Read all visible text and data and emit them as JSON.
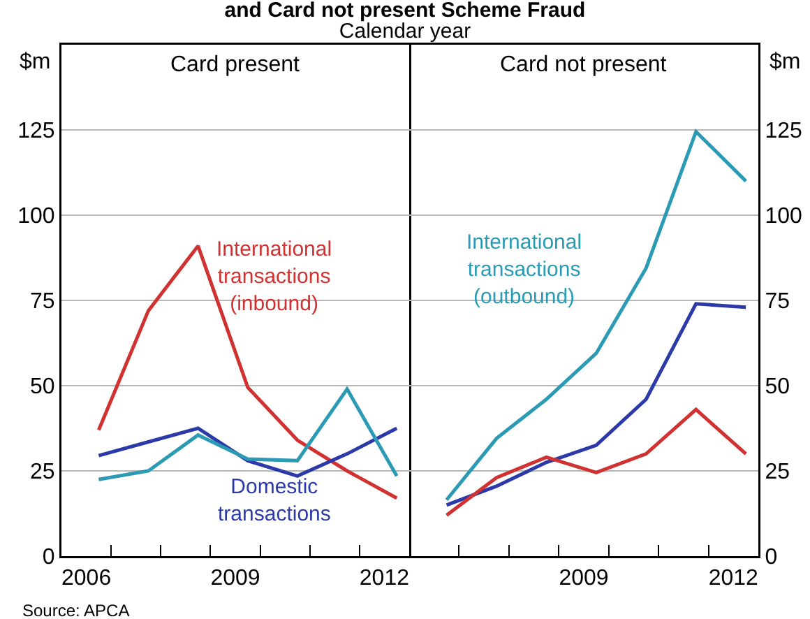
{
  "chart_data": [
    {
      "type": "line",
      "title": "Card present",
      "ylabel": "$m",
      "annotations": [
        "and Card not present Scheme Fraud",
        "Calendar year",
        "Source: APCA"
      ],
      "x": [
        2006.75,
        2007.75,
        2008.75,
        2009.75,
        2010.75,
        2011.75,
        2012.75
      ],
      "xlim": [
        2006,
        2013
      ],
      "xticks": [
        {
          "value": 2006.5,
          "label": "2006"
        },
        {
          "value": 2007,
          "label": null
        },
        {
          "value": 2008,
          "label": null
        },
        {
          "value": 2009,
          "label": null
        },
        {
          "value": 2009.5,
          "label": "2009"
        },
        {
          "value": 2010,
          "label": null
        },
        {
          "value": 2011,
          "label": null
        },
        {
          "value": 2012,
          "label": null
        },
        {
          "value": 2012.5,
          "label": "2012"
        }
      ],
      "ylim": [
        0,
        150
      ],
      "yticks": [
        0,
        25,
        50,
        75,
        100,
        125
      ],
      "grid": "y",
      "legend": false,
      "series": [
        {
          "name": "International\ntransactions\n(inbound)",
          "color": "#d03232",
          "values": [
            37,
            72,
            91,
            49.5,
            34,
            25,
            17
          ]
        },
        {
          "name": "Domestic\ntransactions",
          "color": "#2b3aa8",
          "values": [
            29.5,
            33.5,
            37.5,
            28,
            23.5,
            30,
            37.5
          ]
        },
        {
          "color": "#2a9ab5",
          "values": [
            22.5,
            25,
            35.5,
            28.5,
            28,
            49,
            23.5
          ]
        }
      ]
    },
    {
      "type": "line",
      "title": "Card not present",
      "y2label": "$m",
      "x": [
        2006.75,
        2007.75,
        2008.75,
        2009.75,
        2010.75,
        2011.75,
        2012.75
      ],
      "xlim": [
        2006,
        2013
      ],
      "xticks": [
        {
          "value": 2007,
          "label": null
        },
        {
          "value": 2008,
          "label": null
        },
        {
          "value": 2009,
          "label": null
        },
        {
          "value": 2009.5,
          "label": "2009"
        },
        {
          "value": 2010,
          "label": null
        },
        {
          "value": 2011,
          "label": null
        },
        {
          "value": 2012,
          "label": null
        },
        {
          "value": 2012.5,
          "label": "2012"
        }
      ],
      "y2lim": [
        0,
        150
      ],
      "y2ticks": [
        0,
        25,
        50,
        75,
        100,
        125
      ],
      "grid": "y",
      "legend": false,
      "series": [
        {
          "name": "International\ntransactions\n(outbound)",
          "color": "#2a9ab5",
          "axis": "y2",
          "values": [
            16.5,
            34.5,
            46,
            59.5,
            84.5,
            124.5,
            110
          ]
        },
        {
          "color": "#2b3aa8",
          "axis": "y2",
          "values": [
            15,
            20.5,
            27.5,
            32.5,
            46,
            74,
            73
          ]
        },
        {
          "color": "#d03232",
          "axis": "y2",
          "values": [
            12,
            23,
            29,
            24.5,
            30,
            43,
            30
          ]
        }
      ]
    }
  ]
}
